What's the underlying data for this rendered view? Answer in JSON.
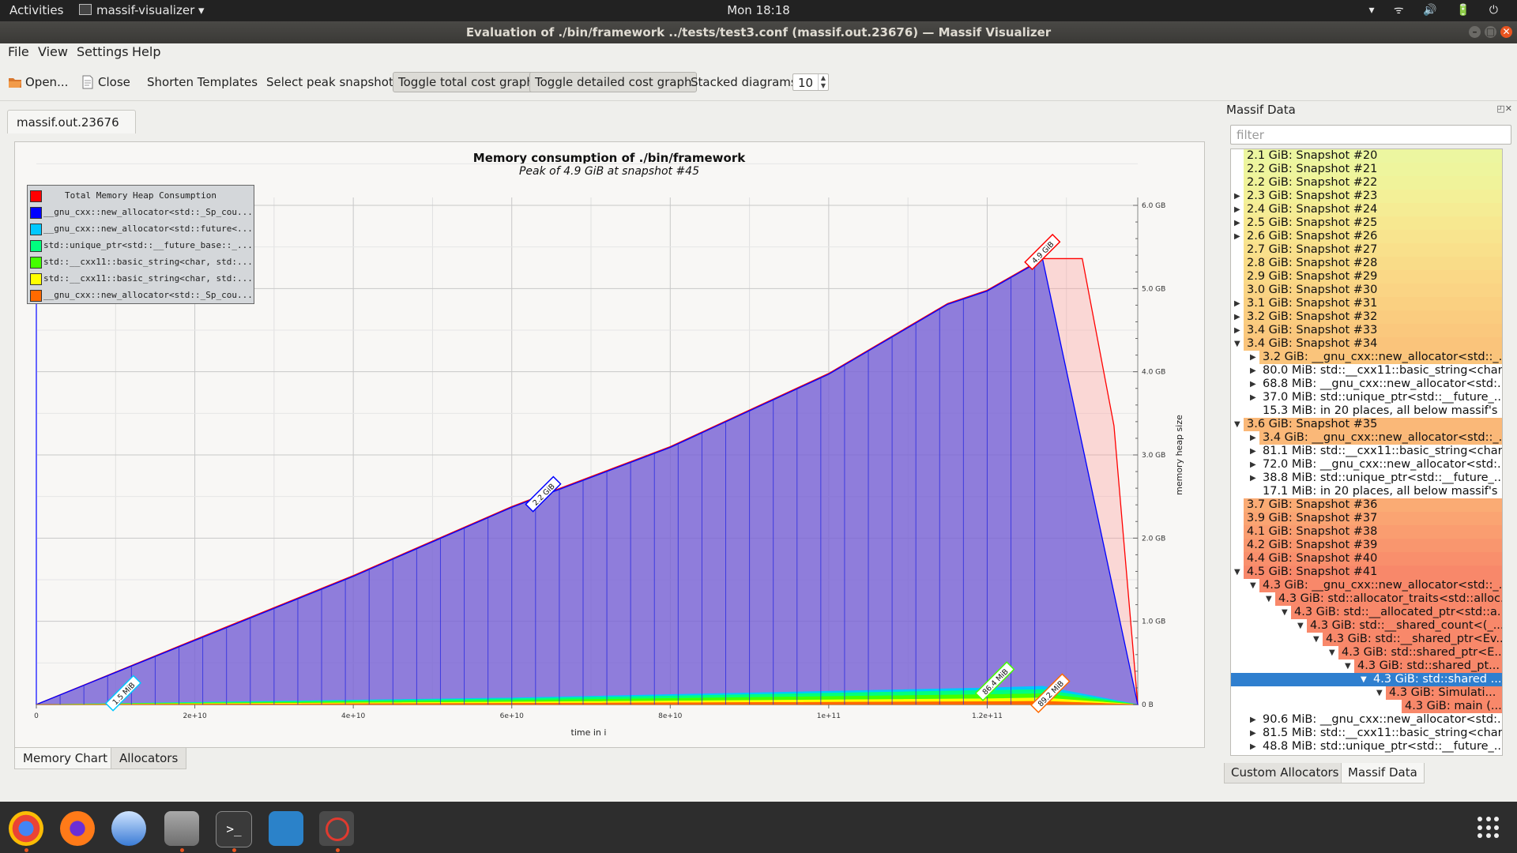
{
  "topbar": {
    "activities": "Activities",
    "app_name": "massif-visualizer",
    "app_arrow": "▾",
    "clock": "Mon 18:18",
    "tray": "▾ ᯤ 🔊 🔋 ⏻"
  },
  "window": {
    "title": "Evaluation of ./bin/framework ../tests/test3.conf (massif.out.23676) — Massif Visualizer"
  },
  "menu": [
    "File",
    "View",
    "Settings",
    "Help"
  ],
  "toolbar": {
    "open": "Open...",
    "close": "Close",
    "shorten": "Shorten Templates",
    "select_peak": "Select peak snapshot",
    "toggle_total": "Toggle total cost graph",
    "toggle_detailed": "Toggle detailed cost graph",
    "stacked_label": "Stacked diagrams:",
    "stacked_value": "10"
  },
  "doc_tab": {
    "label": "massif.out.23676",
    "close_glyph": "✖"
  },
  "bottom_tabs": [
    "Memory Chart",
    "Allocators"
  ],
  "right_panel": {
    "title": "Massif Data",
    "icons": "◰✕",
    "filter_placeholder": "filter",
    "rows": [
      {
        "text": "2.1 GiB: Snapshot #20",
        "level": 0,
        "arrow": "",
        "color": "#ecf6a0"
      },
      {
        "text": "2.2 GiB: Snapshot #21",
        "level": 0,
        "arrow": "",
        "color": "#eef59d"
      },
      {
        "text": "2.2 GiB: Snapshot #22",
        "level": 0,
        "arrow": "",
        "color": "#f0f39a"
      },
      {
        "text": "2.3 GiB: Snapshot #23",
        "level": 0,
        "arrow": "▶",
        "color": "#f3f097"
      },
      {
        "text": "2.4 GiB: Snapshot #24",
        "level": 0,
        "arrow": "▶",
        "color": "#f5ec94"
      },
      {
        "text": "2.5 GiB: Snapshot #25",
        "level": 0,
        "arrow": "▶",
        "color": "#f7e890"
      },
      {
        "text": "2.6 GiB: Snapshot #26",
        "level": 0,
        "arrow": "▶",
        "color": "#f8e48e"
      },
      {
        "text": "2.7 GiB: Snapshot #27",
        "level": 0,
        "arrow": "",
        "color": "#f9e08b"
      },
      {
        "text": "2.8 GiB: Snapshot #28",
        "level": 0,
        "arrow": "",
        "color": "#f9dc88"
      },
      {
        "text": "2.9 GiB: Snapshot #29",
        "level": 0,
        "arrow": "",
        "color": "#fad886"
      },
      {
        "text": "3.0 GiB: Snapshot #30",
        "level": 0,
        "arrow": "",
        "color": "#fad484"
      },
      {
        "text": "3.1 GiB: Snapshot #31",
        "level": 0,
        "arrow": "▶",
        "color": "#fad081"
      },
      {
        "text": "3.2 GiB: Snapshot #32",
        "level": 0,
        "arrow": "▶",
        "color": "#facc7f"
      },
      {
        "text": "3.4 GiB: Snapshot #33",
        "level": 0,
        "arrow": "▶",
        "color": "#fac87d"
      },
      {
        "text": "3.4 GiB: Snapshot #34",
        "level": 0,
        "arrow": "▼",
        "color": "#fac47b"
      },
      {
        "text": "3.2 GiB: __gnu_cxx::new_allocator<std::_...",
        "level": 1,
        "arrow": "▶",
        "color": "#fac47b"
      },
      {
        "text": "80.0 MiB: std::__cxx11::basic_string<char...",
        "level": 1,
        "arrow": "▶",
        "color": "#ffffff"
      },
      {
        "text": "68.8 MiB: __gnu_cxx::new_allocator<std:...",
        "level": 1,
        "arrow": "▶",
        "color": "#ffffff"
      },
      {
        "text": "37.0 MiB: std::unique_ptr<std::__future_...",
        "level": 1,
        "arrow": "▶",
        "color": "#ffffff"
      },
      {
        "text": "15.3 MiB: in 20 places, all below massif's ...",
        "level": 1,
        "arrow": "",
        "color": "#ffffff"
      },
      {
        "text": "3.6 GiB: Snapshot #35",
        "level": 0,
        "arrow": "▼",
        "color": "#fab878"
      },
      {
        "text": "3.4 GiB: __gnu_cxx::new_allocator<std::_...",
        "level": 1,
        "arrow": "▶",
        "color": "#fab878"
      },
      {
        "text": "81.1 MiB: std::__cxx11::basic_string<char...",
        "level": 1,
        "arrow": "▶",
        "color": "#ffffff"
      },
      {
        "text": "72.0 MiB: __gnu_cxx::new_allocator<std:...",
        "level": 1,
        "arrow": "▶",
        "color": "#ffffff"
      },
      {
        "text": "38.8 MiB: std::unique_ptr<std::__future_...",
        "level": 1,
        "arrow": "▶",
        "color": "#ffffff"
      },
      {
        "text": "17.1 MiB: in 20 places, all below massif's ...",
        "level": 1,
        "arrow": "",
        "color": "#ffffff"
      },
      {
        "text": "3.7 GiB: Snapshot #36",
        "level": 0,
        "arrow": "",
        "color": "#faab74"
      },
      {
        "text": "3.9 GiB: Snapshot #37",
        "level": 0,
        "arrow": "",
        "color": "#faa472"
      },
      {
        "text": "4.1 GiB: Snapshot #38",
        "level": 0,
        "arrow": "",
        "color": "#fa9d70"
      },
      {
        "text": "4.2 GiB: Snapshot #39",
        "level": 0,
        "arrow": "",
        "color": "#f9966e"
      },
      {
        "text": "4.4 GiB: Snapshot #40",
        "level": 0,
        "arrow": "",
        "color": "#f98f6c"
      },
      {
        "text": "4.5 GiB: Snapshot #41",
        "level": 0,
        "arrow": "▼",
        "color": "#f8886a"
      },
      {
        "text": "4.3 GiB: __gnu_cxx::new_allocator<std::_...",
        "level": 1,
        "arrow": "▼",
        "color": "#f8886a"
      },
      {
        "text": "4.3 GiB: std::allocator_traits<std::alloc...",
        "level": 2,
        "arrow": "▼",
        "color": "#f8886a"
      },
      {
        "text": "4.3 GiB: std::__allocated_ptr<std::a...",
        "level": 3,
        "arrow": "▼",
        "color": "#f8886a"
      },
      {
        "text": "4.3 GiB: std::__shared_count<(_...",
        "level": 4,
        "arrow": "▼",
        "color": "#f8886a"
      },
      {
        "text": "4.3 GiB: std::__shared_ptr<Ev...",
        "level": 5,
        "arrow": "▼",
        "color": "#f8886a"
      },
      {
        "text": "4.3 GiB: std::shared_ptr<E...",
        "level": 6,
        "arrow": "▼",
        "color": "#f8886a"
      },
      {
        "text": "4.3 GiB: std::shared_pt...",
        "level": 7,
        "arrow": "▼",
        "color": "#f8886a"
      },
      {
        "text": "4.3 GiB: std::shared ...",
        "level": 8,
        "arrow": "▼",
        "color": "#2f7fcf",
        "selected": true
      },
      {
        "text": "4.3 GiB: Simulati...",
        "level": 9,
        "arrow": "▼",
        "color": "#f8886a"
      },
      {
        "text": "4.3 GiB: main (...",
        "level": 10,
        "arrow": "",
        "color": "#f8886a"
      },
      {
        "text": "90.6 MiB: __gnu_cxx::new_allocator<std:...",
        "level": 1,
        "arrow": "▶",
        "color": "#ffffff"
      },
      {
        "text": "81.5 MiB: std::__cxx11::basic_string<char...",
        "level": 1,
        "arrow": "▶",
        "color": "#ffffff"
      },
      {
        "text": "48.8 MiB: std::unique_ptr<std::__future_...",
        "level": 1,
        "arrow": "▶",
        "color": "#ffffff"
      }
    ],
    "tabs": [
      "Custom Allocators",
      "Massif Data"
    ]
  },
  "legend": [
    {
      "label": "Total Memory Heap Consumption",
      "color": "#ff0000",
      "header": true
    },
    {
      "label": "__gnu_cxx::new_allocator<std::_Sp_cou...",
      "color": "#0000ff"
    },
    {
      "label": "__gnu_cxx::new_allocator<std::future<...",
      "color": "#00c8ff"
    },
    {
      "label": "std::unique_ptr<std::__future_base::_...",
      "color": "#00ff7f"
    },
    {
      "label": "std::__cxx11::basic_string<char, std:...",
      "color": "#44ff00"
    },
    {
      "label": "std::__cxx11::basic_string<char, std:...",
      "color": "#ffff00"
    },
    {
      "label": "__gnu_cxx::new_allocator<std::_Sp_cou...",
      "color": "#ff6a00"
    }
  ],
  "chart_data": {
    "type": "area",
    "title": "Memory consumption of ./bin/framework",
    "subtitle": "Peak of 4.9 GiB at snapshot #45",
    "xlabel": "time in i",
    "ylabel": "memory heap size",
    "x_ticks": [
      "0",
      "2e+10",
      "4e+10",
      "6e+10",
      "8e+10",
      "1e+11",
      "1.2e+11"
    ],
    "y_ticks": [
      "0 B",
      "1.0 GB",
      "2.0 GB",
      "3.0 GB",
      "4.0 GB",
      "5.0 GB",
      "6.0 GB"
    ],
    "xlim": [
      0,
      139000000000
    ],
    "ylim": [
      0,
      6.0
    ],
    "series": [
      {
        "name": "Total Memory Heap Consumption",
        "color": "#ff0000",
        "x": [
          0,
          20000000000,
          40000000000,
          60000000000,
          80000000000,
          100000000000,
          115000000000,
          120000000000,
          127000000000,
          132000000000,
          136000000000,
          139000000000
        ],
        "y": [
          0,
          0.78,
          1.55,
          2.38,
          3.1,
          3.98,
          4.82,
          4.98,
          5.36,
          5.36,
          3.35,
          0
        ]
      },
      {
        "name": "__gnu_cxx::new_allocator<std::_Sp_cou...",
        "color": "#0000ff",
        "x": [
          0,
          20000000000,
          40000000000,
          60000000000,
          80000000000,
          100000000000,
          115000000000,
          120000000000,
          127000000000,
          139000000000
        ],
        "y": [
          0,
          0.77,
          1.54,
          2.37,
          3.09,
          3.97,
          4.81,
          4.97,
          5.35,
          0
        ]
      },
      {
        "name": "__gnu_cxx::new_allocator<std::future<...",
        "color": "#00c8ff",
        "x": [
          0,
          60000000000,
          120000000000,
          127000000000,
          139000000000
        ],
        "y": [
          0,
          0.08,
          0.2,
          0.22,
          0
        ]
      },
      {
        "name": "std::unique_ptr<std::__future_base::_...",
        "color": "#00ff7f",
        "x": [
          0,
          60000000000,
          120000000000,
          127000000000,
          139000000000
        ],
        "y": [
          0,
          0.07,
          0.17,
          0.18,
          0
        ]
      },
      {
        "name": "std::__cxx11::basic_string<char, std:...",
        "color": "#44ff00",
        "x": [
          0,
          60000000000,
          120000000000,
          127000000000,
          139000000000
        ],
        "y": [
          0,
          0.05,
          0.12,
          0.13,
          0
        ]
      },
      {
        "name": "std::__cxx11::basic_string<char, std:...",
        "color": "#ffff00",
        "x": [
          0,
          60000000000,
          120000000000,
          127000000000,
          139000000000
        ],
        "y": [
          0,
          0.03,
          0.07,
          0.08,
          0
        ]
      },
      {
        "name": "__gnu_cxx::new_allocator<std::_Sp_cou...",
        "color": "#ff6a00",
        "x": [
          0,
          60000000000,
          120000000000,
          127000000000,
          139000000000
        ],
        "y": [
          0,
          0.015,
          0.035,
          0.04,
          0
        ]
      }
    ],
    "annotations": [
      {
        "text": "4.9 GiB",
        "x": 127000000000,
        "y": 5.36,
        "color": "#ff0000"
      },
      {
        "text": "2.2 GiB",
        "x": 64000000000,
        "y": 2.45,
        "color": "#0000ff"
      },
      {
        "text": "1.5 MiB",
        "x": 11000000000,
        "y": 0.0,
        "color": "#00c8ff"
      },
      {
        "text": "86.4 MiB",
        "x": 121000000000,
        "y": 0.2,
        "color": "#44ff00"
      },
      {
        "text": "89.2 MiB",
        "x": 128000000000,
        "y": 0.02,
        "color": "#ff6a00"
      }
    ]
  }
}
